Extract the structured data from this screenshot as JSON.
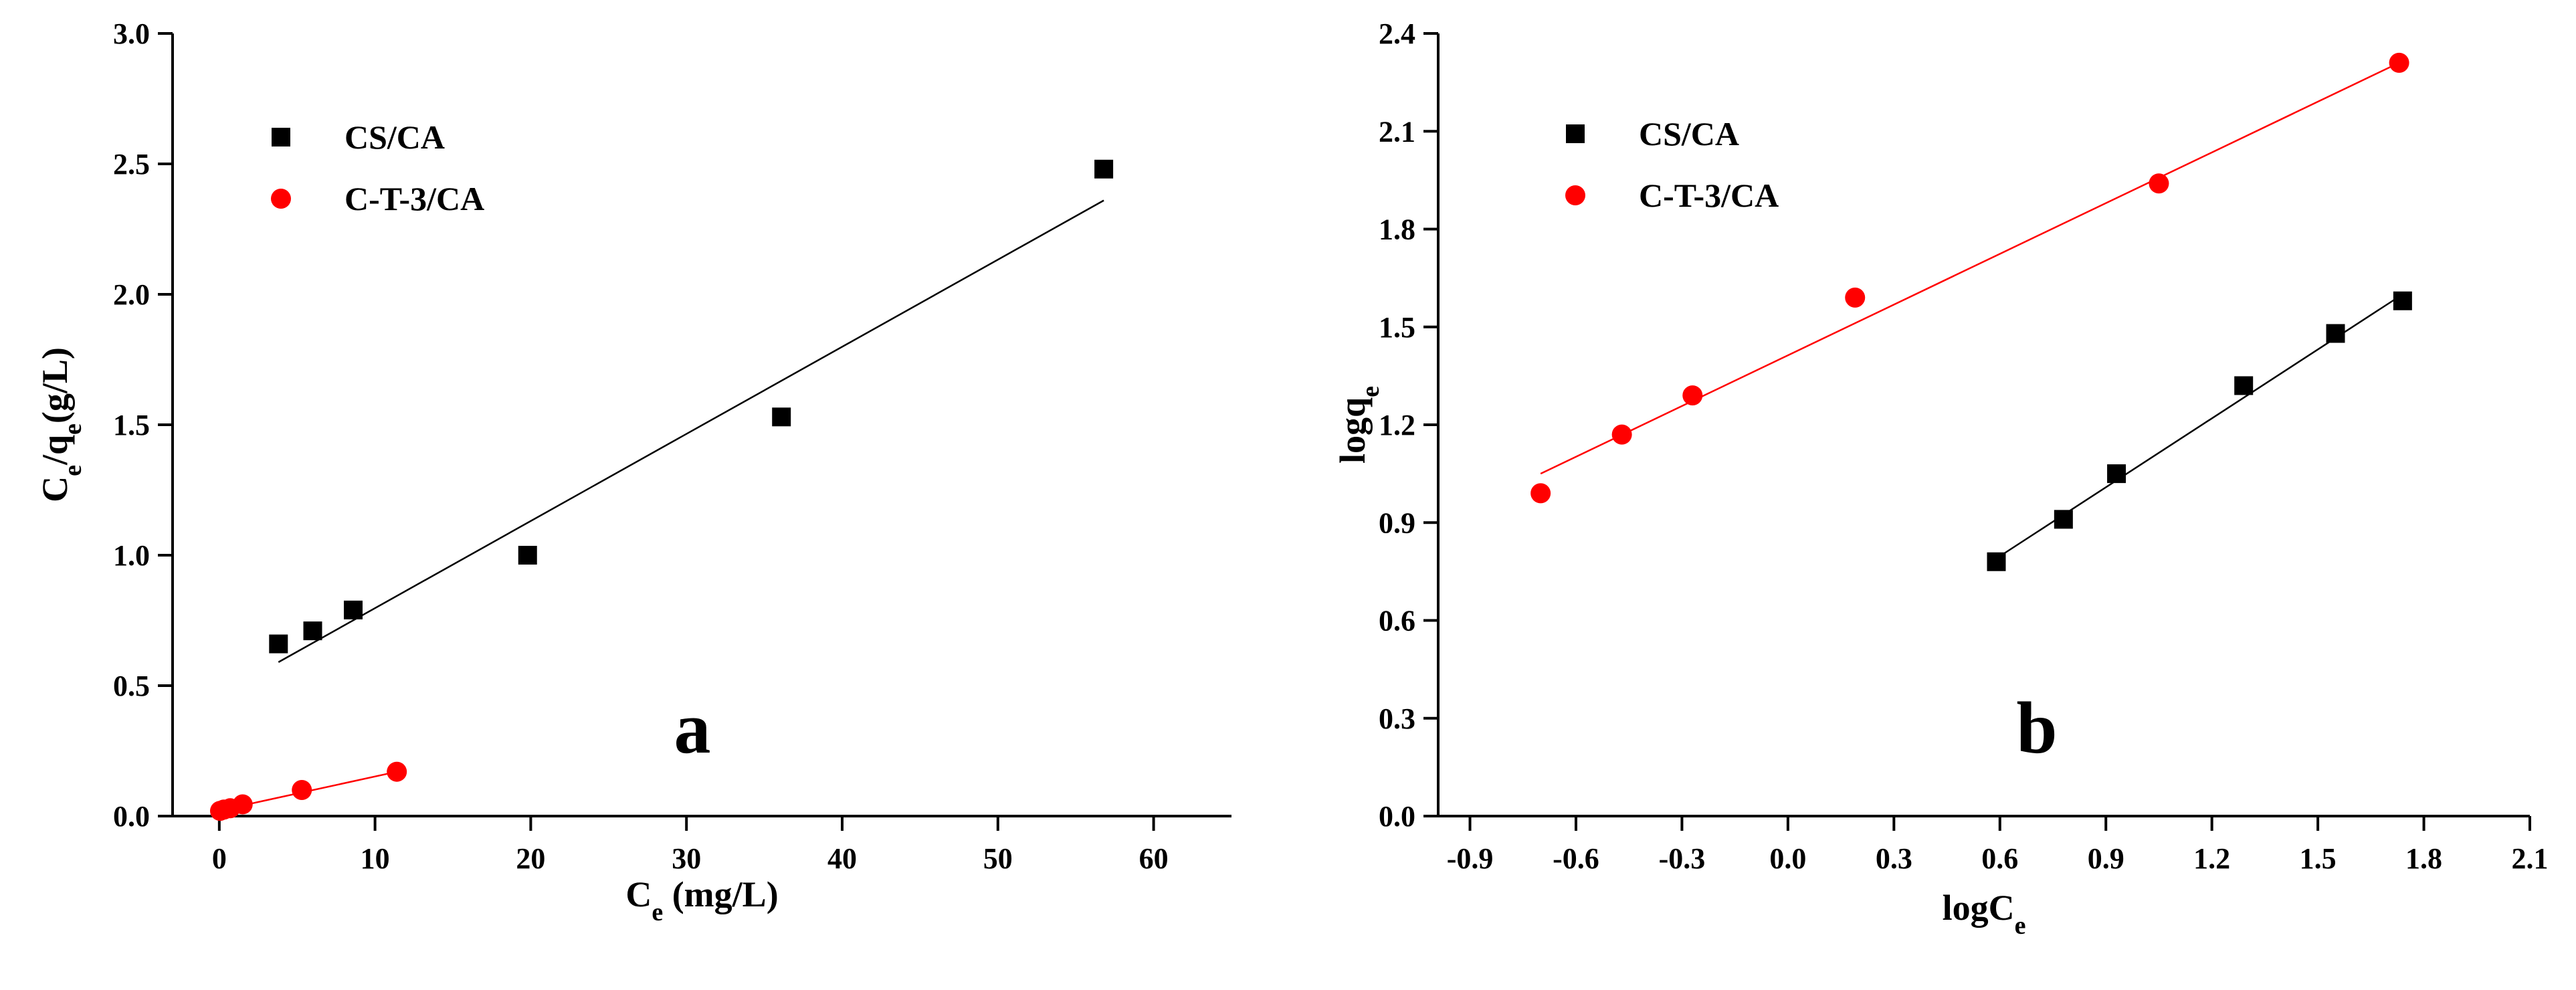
{
  "chart_data": [
    {
      "type": "scatter",
      "panel_label": "a",
      "xlabel_main": "C",
      "xlabel_sub": "e",
      "xlabel_unit": "(mg/L)",
      "ylabel_main": "C",
      "ylabel_sub": "e",
      "ylabel_mid": "/q",
      "ylabel_sub2": "e",
      "ylabel_unit": "(g/L)",
      "xlim": [
        -3,
        65
      ],
      "ylim": [
        0,
        3.0
      ],
      "xticks": [
        0,
        10,
        20,
        30,
        40,
        50,
        60
      ],
      "xtick_labels": [
        "0",
        "10",
        "20",
        "30",
        "40",
        "50",
        "60"
      ],
      "yticks": [
        0.0,
        0.5,
        1.0,
        1.5,
        2.0,
        2.5,
        3.0
      ],
      "ytick_labels": [
        "0.0",
        "0.5",
        "1.0",
        "1.5",
        "2.0",
        "2.5",
        "3.0"
      ],
      "legend_position": "top-left",
      "series": [
        {
          "name": "CS/CA",
          "marker": "square",
          "color": "#000000",
          "x": [
            3.8,
            6.0,
            8.6,
            19.8,
            36.1,
            56.8
          ],
          "y": [
            0.66,
            0.71,
            0.79,
            1.0,
            1.53,
            2.48
          ],
          "fit": [
            [
              3.8,
              0.59
            ],
            [
              56.8,
              2.36
            ]
          ]
        },
        {
          "name": "C-T-3/CA",
          "marker": "circle",
          "color": "#ff0000",
          "x": [
            0.05,
            0.3,
            0.7,
            1.5,
            5.3,
            11.4
          ],
          "y": [
            0.02,
            0.025,
            0.03,
            0.045,
            0.1,
            0.17
          ],
          "fit": [
            [
              0.05,
              0.022
            ],
            [
              11.4,
              0.17
            ]
          ]
        }
      ]
    },
    {
      "type": "scatter",
      "panel_label": "b",
      "xlabel_main": "logC",
      "xlabel_sub": "e",
      "ylabel_main": "logq",
      "ylabel_sub": "e",
      "xlim": [
        -0.99,
        2.1
      ],
      "ylim": [
        0,
        2.4
      ],
      "xticks": [
        -0.9,
        -0.6,
        -0.3,
        0.0,
        0.3,
        0.6,
        0.9,
        1.2,
        1.5,
        1.8,
        2.1
      ],
      "xtick_labels": [
        "-0.9",
        "-0.6",
        "-0.3",
        "0.0",
        "0.3",
        "0.6",
        "0.9",
        "1.2",
        "1.5",
        "1.8",
        "2.1"
      ],
      "yticks": [
        0.0,
        0.3,
        0.6,
        0.9,
        1.2,
        1.5,
        1.8,
        2.1,
        2.4
      ],
      "ytick_labels": [
        "0.0",
        "0.3",
        "0.6",
        "0.9",
        "1.2",
        "1.5",
        "1.8",
        "2.1",
        "2.4"
      ],
      "legend_position": "top-left",
      "series": [
        {
          "name": "CS/CA",
          "marker": "square",
          "color": "#000000",
          "x": [
            0.59,
            0.78,
            0.93,
            1.29,
            1.55,
            1.74
          ],
          "y": [
            0.78,
            0.91,
            1.05,
            1.32,
            1.48,
            1.58
          ],
          "fit": [
            [
              0.59,
              0.79
            ],
            [
              1.74,
              1.6
            ]
          ]
        },
        {
          "name": "C-T-3/CA",
          "marker": "circle",
          "color": "#ff0000",
          "x": [
            -0.7,
            -0.47,
            -0.27,
            0.19,
            1.05,
            1.73
          ],
          "y": [
            0.99,
            1.17,
            1.29,
            1.59,
            1.94,
            2.31
          ],
          "fit": [
            [
              -0.7,
              1.05
            ],
            [
              1.73,
              2.31
            ]
          ]
        }
      ]
    }
  ]
}
